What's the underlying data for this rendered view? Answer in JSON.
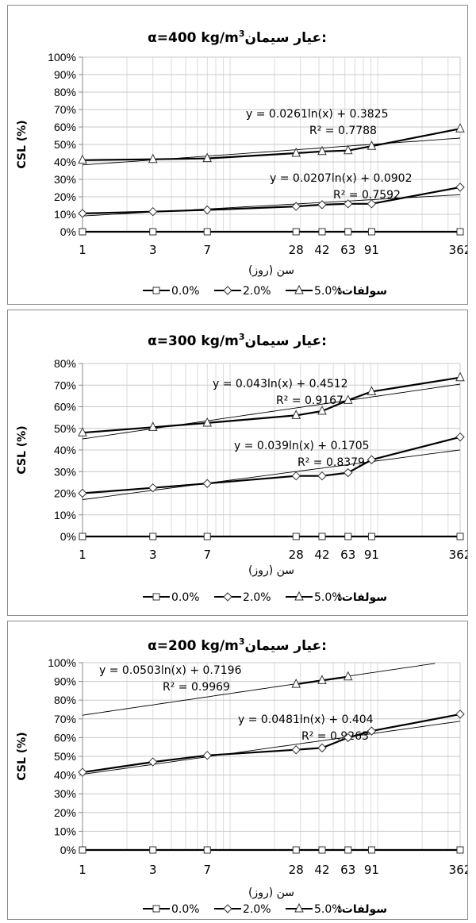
{
  "chart_data": [
    {
      "type": "line",
      "title": "عیار سیمان:α=400 kg/m³",
      "title_prefix": "عیار سیمان:",
      "title_main": "α=400 kg/m",
      "title_sup": "3",
      "xlabel": "سن (روز)",
      "ylabel": "CSL (%)",
      "x_scale": "log",
      "x_ticks": [
        1,
        3,
        7,
        28,
        42,
        63,
        91,
        362
      ],
      "xlim": [
        1,
        362
      ],
      "ylim": [
        0,
        100
      ],
      "y_ticks": [
        "0%",
        "10%",
        "20%",
        "30%",
        "40%",
        "50%",
        "60%",
        "70%",
        "80%",
        "90%",
        "100%"
      ],
      "grid": true,
      "legend_title": "سولفات:",
      "legend_placement": "bottom",
      "series": [
        {
          "name": "0.0%",
          "marker": "square",
          "x": [
            1,
            3,
            7,
            28,
            42,
            63,
            91,
            362
          ],
          "values": [
            0,
            0,
            0,
            0,
            0,
            0,
            0,
            0
          ]
        },
        {
          "name": "2.0%",
          "marker": "diamond",
          "x": [
            1,
            3,
            7,
            28,
            42,
            63,
            91,
            362
          ],
          "values": [
            10.5,
            11.5,
            12.5,
            14.5,
            15.5,
            16,
            16,
            25.5
          ]
        },
        {
          "name": "5.0%",
          "marker": "triangle",
          "x": [
            1,
            3,
            7,
            28,
            42,
            63,
            91,
            362
          ],
          "values": [
            41,
            41.5,
            42,
            45,
            46,
            46.5,
            49,
            59
          ]
        }
      ],
      "trendlines": [
        {
          "series": "5.0%",
          "a": 0.0261,
          "b": 0.3825,
          "equation": "y = 0.0261ln(x) + 0.3825",
          "r2": "R² = 0.7788"
        },
        {
          "series": "2.0%",
          "a": 0.0207,
          "b": 0.0902,
          "equation": "y = 0.0207ln(x) + 0.0902",
          "r2": "R² = 0.7592"
        }
      ]
    },
    {
      "type": "line",
      "title": "عیار سیمان:α=300 kg/m³",
      "title_prefix": "عیار سیمان:",
      "title_main": "α=300 kg/m",
      "title_sup": "3",
      "xlabel": "سن (روز)",
      "ylabel": "CSL (%)",
      "x_scale": "log",
      "x_ticks": [
        1,
        3,
        7,
        28,
        42,
        63,
        91,
        362
      ],
      "xlim": [
        1,
        362
      ],
      "ylim": [
        0,
        80
      ],
      "y_ticks": [
        "0%",
        "10%",
        "20%",
        "30%",
        "40%",
        "50%",
        "60%",
        "70%",
        "80%"
      ],
      "grid": true,
      "legend_title": "سولفات:",
      "legend_placement": "bottom",
      "series": [
        {
          "name": "0.0%",
          "marker": "square",
          "x": [
            1,
            3,
            7,
            28,
            42,
            63,
            91,
            362
          ],
          "values": [
            0,
            0,
            0,
            0,
            0,
            0,
            0,
            0
          ]
        },
        {
          "name": "2.0%",
          "marker": "diamond",
          "x": [
            1,
            3,
            7,
            28,
            42,
            63,
            91,
            362
          ],
          "values": [
            20,
            22.5,
            24.5,
            28,
            28,
            29.5,
            35.5,
            46
          ]
        },
        {
          "name": "5.0%",
          "marker": "triangle",
          "x": [
            1,
            3,
            7,
            28,
            42,
            63,
            91,
            362
          ],
          "values": [
            48,
            50.5,
            52.5,
            56,
            58,
            63,
            67,
            73.5
          ]
        }
      ],
      "trendlines": [
        {
          "series": "5.0%",
          "a": 0.043,
          "b": 0.4512,
          "equation": "y = 0.043ln(x) + 0.4512",
          "r2": "R² = 0.9167"
        },
        {
          "series": "2.0%",
          "a": 0.039,
          "b": 0.1705,
          "equation": "y = 0.039ln(x) + 0.1705",
          "r2": "R² = 0.8379"
        }
      ]
    },
    {
      "type": "line",
      "title": "عیار سیمان:α=200 kg/m³",
      "title_prefix": "عیار سیمان:",
      "title_main": "α=200 kg/m",
      "title_sup": "3",
      "xlabel": "سن (روز)",
      "ylabel": "CSL (%)",
      "x_scale": "log",
      "x_ticks": [
        1,
        3,
        7,
        28,
        42,
        63,
        91,
        362
      ],
      "xlim": [
        1,
        362
      ],
      "ylim": [
        0,
        100
      ],
      "y_ticks": [
        "0%",
        "10%",
        "20%",
        "30%",
        "40%",
        "50%",
        "60%",
        "70%",
        "80%",
        "90%",
        "100%"
      ],
      "grid": true,
      "legend_title": "سولفات:",
      "legend_placement": "bottom",
      "series": [
        {
          "name": "0.0%",
          "marker": "square",
          "x": [
            1,
            3,
            7,
            28,
            42,
            63,
            91,
            362
          ],
          "values": [
            0,
            0,
            0,
            0,
            0,
            0,
            0,
            0
          ]
        },
        {
          "name": "2.0%",
          "marker": "diamond",
          "x": [
            1,
            3,
            7,
            28,
            42,
            63,
            91,
            362
          ],
          "values": [
            41.5,
            47,
            50.5,
            53.5,
            54.5,
            60,
            63.5,
            72.5
          ]
        },
        {
          "name": "5.0%",
          "marker": "triangle",
          "x": [
            28,
            42,
            63
          ],
          "values": [
            88.5,
            90.5,
            92.5
          ]
        }
      ],
      "trendlines": [
        {
          "series": "5.0%",
          "a": 0.0503,
          "b": 0.7196,
          "equation": "y = 0.0503ln(x) + 0.7196",
          "r2": "R² = 0.9969"
        },
        {
          "series": "2.0%",
          "a": 0.0481,
          "b": 0.404,
          "equation": "y = 0.0481ln(x) + 0.404",
          "r2": "R² = 0.9263"
        }
      ]
    }
  ]
}
